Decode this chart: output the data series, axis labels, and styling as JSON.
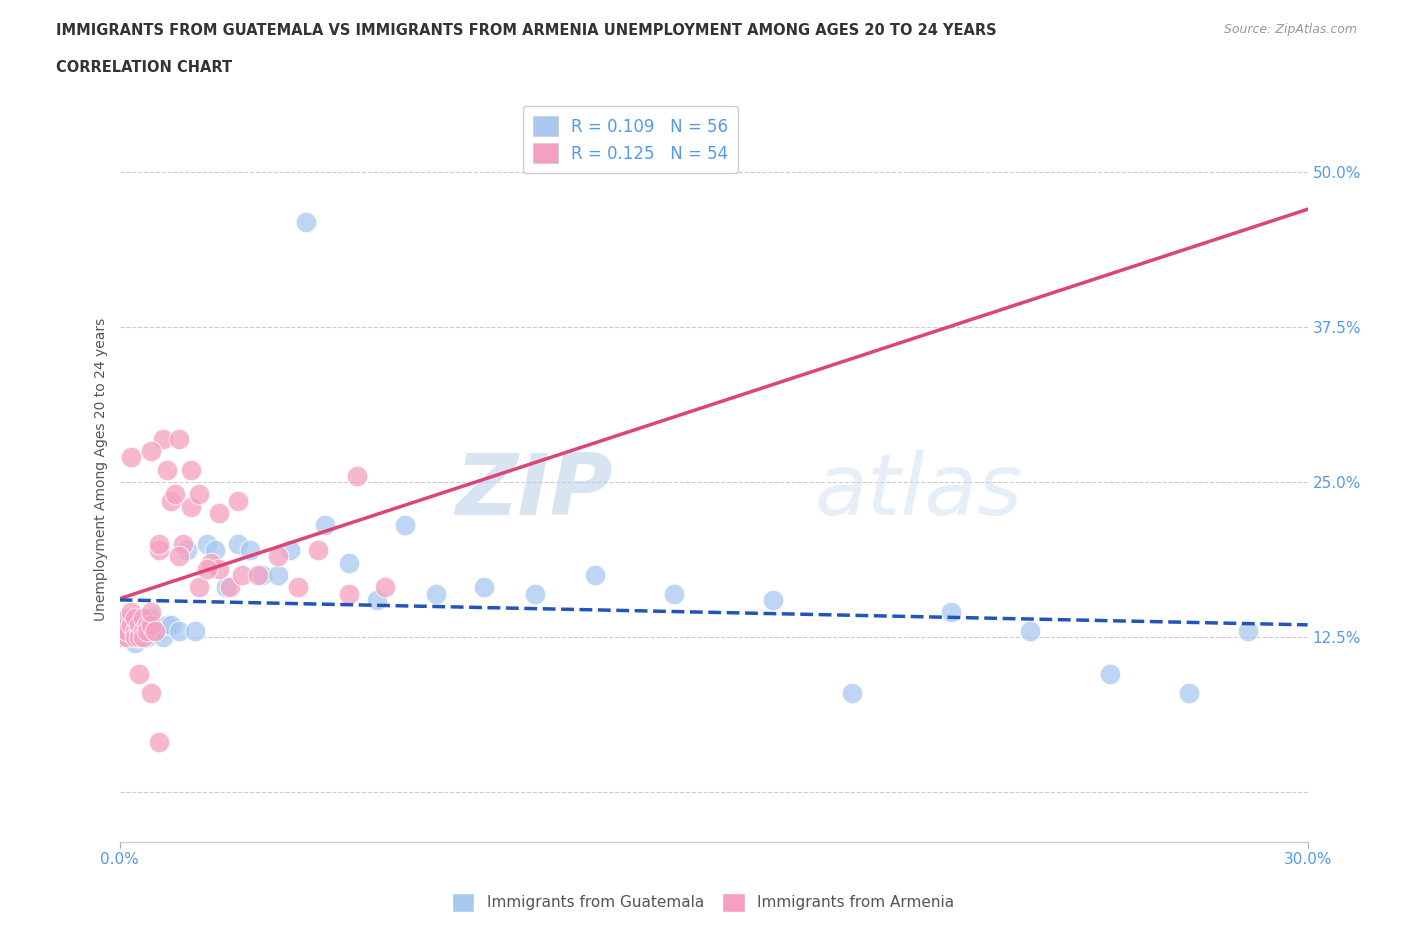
{
  "title_line1": "IMMIGRANTS FROM GUATEMALA VS IMMIGRANTS FROM ARMENIA UNEMPLOYMENT AMONG AGES 20 TO 24 YEARS",
  "title_line2": "CORRELATION CHART",
  "source_text": "Source: ZipAtlas.com",
  "ylabel": "Unemployment Among Ages 20 to 24 years",
  "xlim": [
    0.0,
    0.3
  ],
  "ylim": [
    -0.04,
    0.56
  ],
  "watermark_zip": "ZIP",
  "watermark_atlas": "atlas",
  "blue_color": "#a8c8f0",
  "pink_color": "#f5a0c0",
  "blue_line_color": "#2255bb",
  "pink_line_color": "#dd4477",
  "grid_color": "#cccccc",
  "title_color": "#333333",
  "axis_label_color": "#555555",
  "tick_color_right": "#5599ee",
  "tick_color_bottom": "#5599ee",
  "legend_r1": "R = 0.109   N = 56",
  "legend_r2": "R = 0.125   N = 54",
  "legend_bottom1": "Immigrants from Guatemala",
  "legend_bottom2": "Immigrants from Armenia",
  "guatemala_x": [
    0.001,
    0.001,
    0.001,
    0.002,
    0.002,
    0.002,
    0.002,
    0.003,
    0.003,
    0.003,
    0.003,
    0.004,
    0.004,
    0.004,
    0.005,
    0.005,
    0.005,
    0.006,
    0.006,
    0.007,
    0.007,
    0.008,
    0.008,
    0.009,
    0.01,
    0.011,
    0.012,
    0.013,
    0.015,
    0.017,
    0.019,
    0.022,
    0.024,
    0.027,
    0.03,
    0.033,
    0.036,
    0.04,
    0.043,
    0.047,
    0.052,
    0.058,
    0.065,
    0.072,
    0.08,
    0.092,
    0.105,
    0.12,
    0.14,
    0.165,
    0.185,
    0.21,
    0.23,
    0.25,
    0.27,
    0.285
  ],
  "guatemala_y": [
    0.135,
    0.13,
    0.125,
    0.14,
    0.13,
    0.125,
    0.135,
    0.13,
    0.135,
    0.125,
    0.13,
    0.135,
    0.12,
    0.13,
    0.135,
    0.13,
    0.125,
    0.13,
    0.135,
    0.125,
    0.135,
    0.14,
    0.13,
    0.13,
    0.13,
    0.125,
    0.135,
    0.135,
    0.13,
    0.195,
    0.13,
    0.2,
    0.195,
    0.165,
    0.2,
    0.195,
    0.175,
    0.175,
    0.195,
    0.46,
    0.215,
    0.185,
    0.155,
    0.215,
    0.16,
    0.165,
    0.16,
    0.175,
    0.16,
    0.155,
    0.08,
    0.145,
    0.13,
    0.095,
    0.08,
    0.13
  ],
  "armenia_x": [
    0.001,
    0.001,
    0.002,
    0.002,
    0.002,
    0.003,
    0.003,
    0.003,
    0.004,
    0.004,
    0.004,
    0.005,
    0.005,
    0.005,
    0.006,
    0.006,
    0.006,
    0.007,
    0.007,
    0.008,
    0.008,
    0.009,
    0.01,
    0.011,
    0.012,
    0.013,
    0.014,
    0.016,
    0.018,
    0.02,
    0.023,
    0.025,
    0.028,
    0.031,
    0.035,
    0.04,
    0.045,
    0.05,
    0.058,
    0.067,
    0.015,
    0.018,
    0.008,
    0.03,
    0.06,
    0.015,
    0.02,
    0.025,
    0.01,
    0.022,
    0.005,
    0.008,
    0.01,
    0.003
  ],
  "armenia_y": [
    0.135,
    0.125,
    0.14,
    0.125,
    0.13,
    0.14,
    0.135,
    0.145,
    0.13,
    0.14,
    0.125,
    0.13,
    0.135,
    0.125,
    0.14,
    0.13,
    0.125,
    0.135,
    0.13,
    0.135,
    0.145,
    0.13,
    0.195,
    0.285,
    0.26,
    0.235,
    0.24,
    0.2,
    0.23,
    0.165,
    0.185,
    0.18,
    0.165,
    0.175,
    0.175,
    0.19,
    0.165,
    0.195,
    0.16,
    0.165,
    0.285,
    0.26,
    0.275,
    0.235,
    0.255,
    0.19,
    0.24,
    0.225,
    0.2,
    0.18,
    0.095,
    0.08,
    0.04,
    0.27
  ]
}
